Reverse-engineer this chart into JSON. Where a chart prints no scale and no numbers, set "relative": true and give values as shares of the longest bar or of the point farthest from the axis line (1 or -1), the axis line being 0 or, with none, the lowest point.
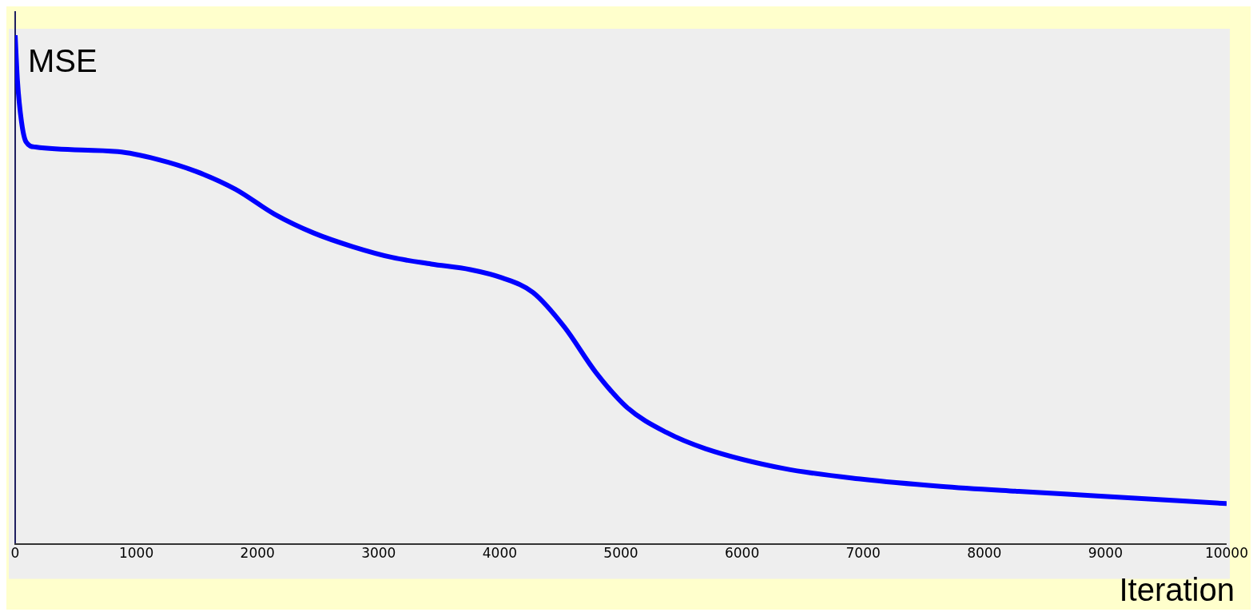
{
  "chart_data": {
    "type": "line",
    "ylabel": "MSE",
    "xlabel": "Iteration",
    "relative": true,
    "xlim": [
      0,
      10000
    ],
    "xticks": [
      0,
      1000,
      2000,
      3000,
      4000,
      5000,
      6000,
      7000,
      8000,
      9000,
      10000
    ],
    "grid": false,
    "legend": false,
    "marker": "none",
    "line_style": "solid",
    "series": [
      {
        "color": "#0000ff",
        "x": [
          0,
          19,
          52,
          90,
          168,
          847,
          1171,
          1494,
          1818,
          2141,
          2464,
          2788,
          3111,
          3434,
          3758,
          4017,
          4275,
          4534,
          4793,
          5051,
          5375,
          5698,
          6345,
          6992,
          7639,
          8286,
          8932,
          10000
        ],
        "values": [
          1.0,
          0.91,
          0.83,
          0.79,
          0.78,
          0.771,
          0.756,
          0.732,
          0.697,
          0.648,
          0.611,
          0.584,
          0.563,
          0.55,
          0.539,
          0.523,
          0.494,
          0.426,
          0.337,
          0.268,
          0.219,
          0.187,
          0.148,
          0.127,
          0.113,
          0.103,
          0.094,
          0.079
        ]
      }
    ]
  }
}
